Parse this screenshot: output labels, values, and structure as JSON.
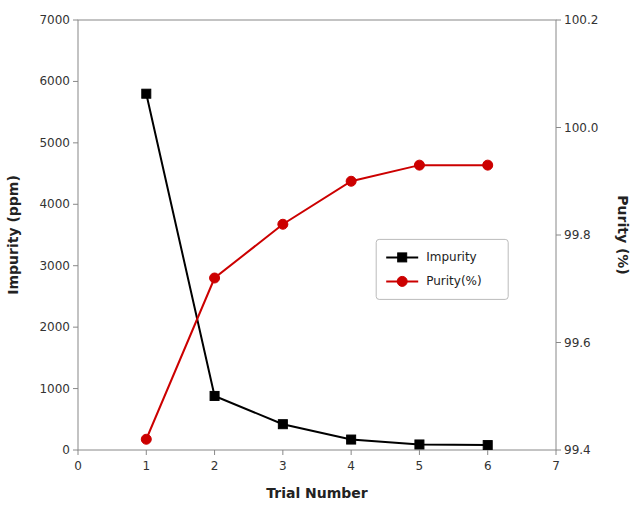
{
  "chart_data": {
    "type": "line",
    "x": [
      1,
      2,
      3,
      4,
      5,
      6
    ],
    "xlabel": "Trial Number",
    "ylabel": "Impurity (ppm)",
    "y2label": "Purity (%)",
    "xlim": [
      0,
      7
    ],
    "xticks": [
      0,
      1,
      2,
      3,
      4,
      5,
      6,
      7
    ],
    "ylim": [
      0,
      7000
    ],
    "yticks": [
      0,
      1000,
      2000,
      3000,
      4000,
      5000,
      6000,
      7000
    ],
    "y2lim": [
      99.4,
      100.2
    ],
    "y2ticks": [
      99.4,
      99.6,
      99.8,
      {
        "value": 100.0,
        "label": "100.0"
      },
      100.2
    ],
    "grid": false,
    "legend": "right",
    "series": [
      {
        "name": "Impurity",
        "color": "#000000",
        "marker": "square",
        "values": [
          5800,
          880,
          420,
          170,
          90,
          80
        ]
      },
      {
        "name": "Purity(%)",
        "color": "#cc0000",
        "marker": "circle",
        "axis": "y2",
        "values": [
          99.42,
          99.72,
          99.82,
          99.9,
          99.93,
          99.93
        ]
      }
    ]
  }
}
